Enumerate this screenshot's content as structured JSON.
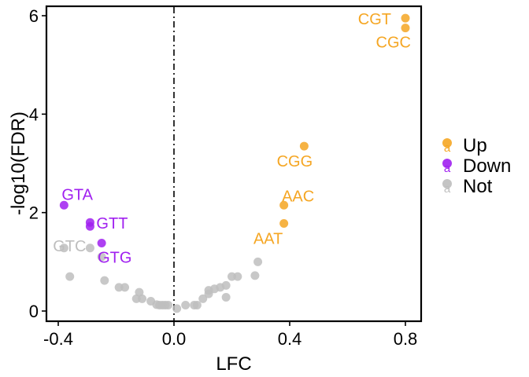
{
  "chart_data": {
    "type": "scatter",
    "xlabel": "LFC",
    "ylabel": "-log10(FDR)",
    "xlim": [
      -0.43,
      0.85
    ],
    "ylim": [
      -0.25,
      6.2
    ],
    "xticks": [
      -0.4,
      0.0,
      0.4,
      0.8
    ],
    "xtick_labels": [
      "-0.4",
      "0.0",
      "0.4",
      "0.8"
    ],
    "yticks": [
      0,
      2,
      4,
      6
    ],
    "ytick_labels": [
      "0",
      "2",
      "4",
      "6"
    ],
    "vline_x": 0.0,
    "grid": false,
    "legend_position": "right",
    "legend": [
      {
        "name": "Up",
        "color": "#F5A623"
      },
      {
        "name": "Down",
        "color": "#A020F0"
      },
      {
        "name": "Not",
        "color": "#BEBEBE"
      }
    ],
    "series": [
      {
        "name": "Up",
        "color": "#F5A623",
        "points": [
          {
            "x": 0.8,
            "y": 5.95,
            "label": "CGT"
          },
          {
            "x": 0.8,
            "y": 5.75,
            "label": "CGC"
          },
          {
            "x": 0.45,
            "y": 3.35,
            "label": "CGG"
          },
          {
            "x": 0.38,
            "y": 2.15,
            "label": "AAC"
          },
          {
            "x": 0.38,
            "y": 1.78,
            "label": "AAT"
          }
        ]
      },
      {
        "name": "Down",
        "color": "#A020F0",
        "points": [
          {
            "x": -0.38,
            "y": 2.15,
            "label": "GTA"
          },
          {
            "x": -0.29,
            "y": 1.8,
            "label": "GTT"
          },
          {
            "x": -0.29,
            "y": 1.72,
            "label": ""
          },
          {
            "x": -0.25,
            "y": 1.38,
            "label": "GTG"
          }
        ]
      },
      {
        "name": "Not",
        "color": "#BEBEBE",
        "points": [
          {
            "x": -0.38,
            "y": 1.28,
            "label": "GTC"
          },
          {
            "x": -0.29,
            "y": 1.28
          },
          {
            "x": -0.25,
            "y": 1.1
          },
          {
            "x": -0.36,
            "y": 0.7
          },
          {
            "x": -0.24,
            "y": 0.62
          },
          {
            "x": -0.19,
            "y": 0.48
          },
          {
            "x": -0.17,
            "y": 0.48
          },
          {
            "x": -0.12,
            "y": 0.38
          },
          {
            "x": -0.13,
            "y": 0.25
          },
          {
            "x": -0.11,
            "y": 0.25
          },
          {
            "x": -0.08,
            "y": 0.2
          },
          {
            "x": -0.06,
            "y": 0.13
          },
          {
            "x": -0.05,
            "y": 0.12
          },
          {
            "x": -0.04,
            "y": 0.12
          },
          {
            "x": -0.03,
            "y": 0.12
          },
          {
            "x": -0.02,
            "y": 0.12
          },
          {
            "x": 0.01,
            "y": 0.05
          },
          {
            "x": 0.04,
            "y": 0.12
          },
          {
            "x": 0.07,
            "y": 0.12
          },
          {
            "x": 0.08,
            "y": 0.12
          },
          {
            "x": 0.1,
            "y": 0.25
          },
          {
            "x": 0.12,
            "y": 0.35
          },
          {
            "x": 0.12,
            "y": 0.42
          },
          {
            "x": 0.14,
            "y": 0.45
          },
          {
            "x": 0.16,
            "y": 0.48
          },
          {
            "x": 0.18,
            "y": 0.28
          },
          {
            "x": 0.18,
            "y": 0.52
          },
          {
            "x": 0.2,
            "y": 0.7
          },
          {
            "x": 0.22,
            "y": 0.7
          },
          {
            "x": 0.28,
            "y": 0.72
          },
          {
            "x": 0.29,
            "y": 1.0
          }
        ]
      }
    ]
  }
}
